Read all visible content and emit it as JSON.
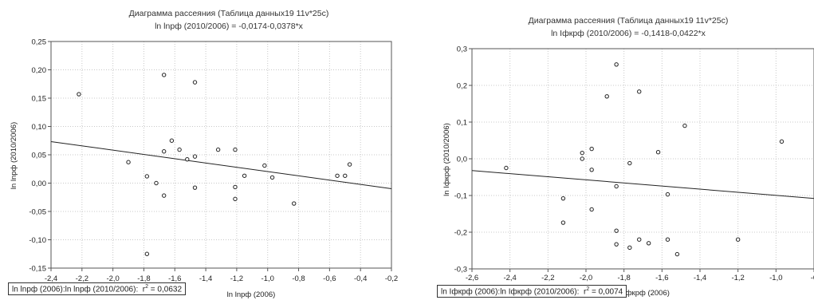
{
  "chart_data": [
    {
      "type": "scatter",
      "title": "Диаграмма рассеяния (Таблица данных19 11v*25c)",
      "subtitle": "ln lnрф (2010/2006) = -0,0174-0,0378*x",
      "xlabel": "ln lnрф (2006)",
      "ylabel": "ln lnрф (2010/2006)",
      "xlim": [
        -2.4,
        -0.2
      ],
      "ylim": [
        -0.15,
        0.25
      ],
      "xticks": [
        "-2,4",
        "-2,2",
        "-2,0",
        "-1,8",
        "-1,6",
        "-1,4",
        "-1,2",
        "-1,0",
        "-0,8",
        "-0,6",
        "-0,4",
        "-0,2"
      ],
      "yticks": [
        "-0,15",
        "-0,10",
        "-0,05",
        "0,00",
        "0,05",
        "0,10",
        "0,15",
        "0,20",
        "0,25"
      ],
      "regression": {
        "intercept": -0.0174,
        "slope": -0.0378
      },
      "grid": true,
      "legend": "ln lnрф (2006):ln lnрф (2010/2006):",
      "r2_value": "0,0632",
      "points": [
        {
          "x": -2.22,
          "y": 0.157
        },
        {
          "x": -1.9,
          "y": 0.037
        },
        {
          "x": -1.78,
          "y": 0.012
        },
        {
          "x": -1.78,
          "y": -0.125
        },
        {
          "x": -1.72,
          "y": 0.0
        },
        {
          "x": -1.67,
          "y": 0.191
        },
        {
          "x": -1.67,
          "y": 0.056
        },
        {
          "x": -1.67,
          "y": -0.022
        },
        {
          "x": -1.62,
          "y": 0.075
        },
        {
          "x": -1.57,
          "y": 0.059
        },
        {
          "x": -1.52,
          "y": 0.042
        },
        {
          "x": -1.47,
          "y": 0.178
        },
        {
          "x": -1.47,
          "y": 0.047
        },
        {
          "x": -1.47,
          "y": -0.008
        },
        {
          "x": -1.32,
          "y": 0.059
        },
        {
          "x": -1.21,
          "y": 0.059
        },
        {
          "x": -1.21,
          "y": -0.007
        },
        {
          "x": -1.21,
          "y": -0.028
        },
        {
          "x": -1.15,
          "y": 0.013
        },
        {
          "x": -1.02,
          "y": 0.031
        },
        {
          "x": -0.97,
          "y": 0.01
        },
        {
          "x": -0.83,
          "y": -0.036
        },
        {
          "x": -0.55,
          "y": 0.013
        },
        {
          "x": -0.5,
          "y": 0.013
        },
        {
          "x": -0.47,
          "y": 0.033
        }
      ]
    },
    {
      "type": "scatter",
      "title": "Диаграмма рассеяния (Таблица данных19 11v*25c)",
      "subtitle": "ln Iфкрф (2010/2006) = -0,1418-0,0422*x",
      "xlabel": "ln Iфкрф (2006)",
      "ylabel": "ln Iфкрф (2010/2006)",
      "xlim": [
        -2.6,
        -0.8
      ],
      "ylim": [
        -0.3,
        0.3
      ],
      "xticks": [
        "-2,6",
        "-2,4",
        "-2,2",
        "-2,0",
        "-1,8",
        "-1,6",
        "-1,4",
        "-1,2",
        "-1,0",
        "-0"
      ],
      "yticks": [
        "-0,3",
        "-0,2",
        "-0,1",
        "0,0",
        "0,1",
        "0,2",
        "0,3"
      ],
      "regression": {
        "intercept": -0.1418,
        "slope": -0.0422
      },
      "grid": true,
      "legend": "ln Iфкрф (2006):ln Iфкрф (2010/2006):",
      "r2_value": "0,0074",
      "points": [
        {
          "x": -2.42,
          "y": -0.025
        },
        {
          "x": -2.12,
          "y": -0.108
        },
        {
          "x": -2.12,
          "y": -0.174
        },
        {
          "x": -2.02,
          "y": 0.016
        },
        {
          "x": -2.02,
          "y": 0.0
        },
        {
          "x": -1.97,
          "y": 0.027
        },
        {
          "x": -1.97,
          "y": -0.03
        },
        {
          "x": -1.97,
          "y": -0.138
        },
        {
          "x": -1.89,
          "y": 0.17
        },
        {
          "x": -1.84,
          "y": 0.257
        },
        {
          "x": -1.84,
          "y": -0.075
        },
        {
          "x": -1.84,
          "y": -0.196
        },
        {
          "x": -1.84,
          "y": -0.233
        },
        {
          "x": -1.77,
          "y": -0.012
        },
        {
          "x": -1.77,
          "y": -0.242
        },
        {
          "x": -1.72,
          "y": 0.183
        },
        {
          "x": -1.72,
          "y": -0.22
        },
        {
          "x": -1.67,
          "y": -0.23
        },
        {
          "x": -1.62,
          "y": 0.018
        },
        {
          "x": -1.57,
          "y": -0.097
        },
        {
          "x": -1.57,
          "y": -0.22
        },
        {
          "x": -1.52,
          "y": -0.26
        },
        {
          "x": -1.48,
          "y": 0.09
        },
        {
          "x": -1.2,
          "y": -0.22
        },
        {
          "x": -0.97,
          "y": 0.047
        }
      ]
    }
  ]
}
